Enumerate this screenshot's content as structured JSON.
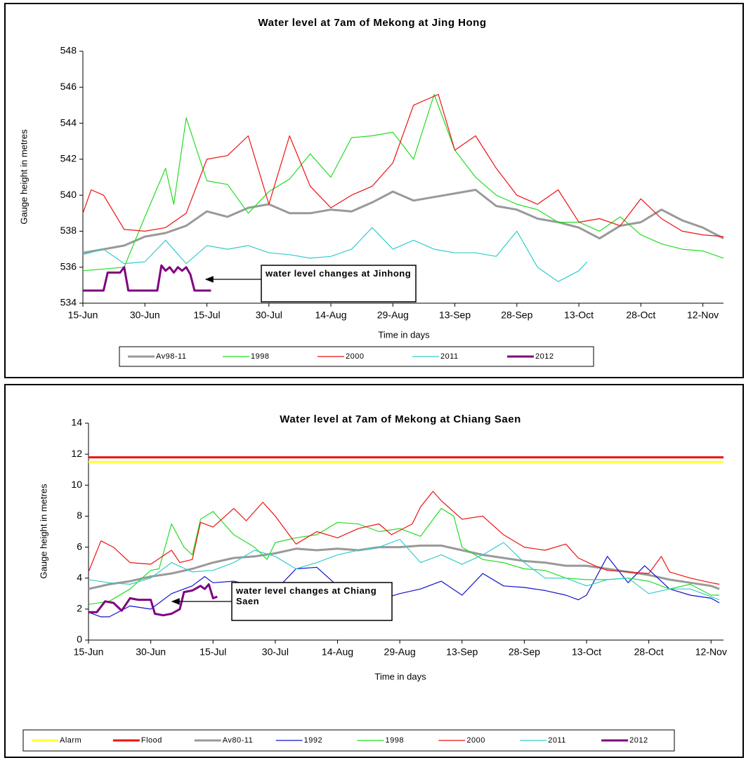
{
  "chart_data": [
    {
      "type": "line",
      "title": "Water level at 7am of Mekong at Jing Hong",
      "x_label": "Time in days",
      "y_label": "Gauge height in metres",
      "annotation": "water level changes at Jinhong",
      "xlim": [
        0,
        155
      ],
      "xticks": [
        {
          "value": 0,
          "label": "15-Jun"
        },
        {
          "value": 15,
          "label": "30-Jun"
        },
        {
          "value": 30,
          "label": "15-Jul"
        },
        {
          "value": 45,
          "label": "30-Jul"
        },
        {
          "value": 60,
          "label": "14-Aug"
        },
        {
          "value": 75,
          "label": "29-Aug"
        },
        {
          "value": 90,
          "label": "13-Sep"
        },
        {
          "value": 105,
          "label": "28-Sep"
        },
        {
          "value": 120,
          "label": "13-Oct"
        },
        {
          "value": 135,
          "label": "28-Oct"
        },
        {
          "value": 150,
          "label": "12-Nov"
        }
      ],
      "ylim": [
        534,
        548
      ],
      "yticks": [
        534,
        536,
        538,
        540,
        542,
        544,
        546,
        548
      ],
      "series": [
        {
          "name": "Av98-11",
          "color": "#999999",
          "line_width": 3,
          "x": [
            0,
            5,
            10,
            15,
            20,
            25,
            30,
            35,
            40,
            45,
            50,
            55,
            60,
            65,
            70,
            75,
            80,
            85,
            90,
            95,
            100,
            105,
            110,
            115,
            120,
            125,
            130,
            135,
            140,
            145,
            150,
            155
          ],
          "values": [
            536.8,
            537.0,
            537.2,
            537.7,
            537.9,
            538.3,
            539.1,
            538.8,
            539.3,
            539.5,
            539.0,
            539.0,
            539.2,
            539.1,
            539.6,
            540.2,
            539.7,
            539.9,
            540.1,
            540.3,
            539.4,
            539.2,
            538.7,
            538.5,
            538.2,
            537.6,
            538.3,
            538.5,
            539.2,
            538.6,
            538.2,
            537.6
          ]
        },
        {
          "name": "1998",
          "color": "#22dd22",
          "line_width": 1.2,
          "x": [
            0,
            5,
            10,
            15,
            20,
            22,
            25,
            30,
            35,
            40,
            45,
            50,
            55,
            60,
            65,
            70,
            75,
            80,
            85,
            90,
            95,
            100,
            105,
            110,
            115,
            120,
            125,
            130,
            135,
            140,
            145,
            150,
            155
          ],
          "values": [
            535.8,
            535.9,
            536.0,
            538.8,
            541.5,
            539.5,
            544.3,
            540.8,
            540.6,
            539.0,
            540.2,
            540.9,
            542.3,
            541.0,
            543.2,
            543.3,
            543.5,
            542.0,
            545.6,
            542.5,
            541.0,
            540.0,
            539.5,
            539.2,
            538.5,
            538.5,
            538.0,
            538.8,
            537.8,
            537.3,
            537.0,
            536.9,
            536.5
          ]
        },
        {
          "name": "2000",
          "color": "#ee1111",
          "line_width": 1.2,
          "x": [
            0,
            2,
            5,
            10,
            15,
            20,
            25,
            30,
            35,
            40,
            45,
            50,
            55,
            60,
            65,
            70,
            75,
            80,
            86,
            90,
            95,
            100,
            105,
            110,
            115,
            120,
            125,
            130,
            135,
            140,
            145,
            150,
            155
          ],
          "values": [
            539.0,
            540.3,
            540.0,
            538.1,
            538.0,
            538.2,
            539.0,
            542.0,
            542.2,
            543.3,
            539.5,
            543.3,
            540.5,
            539.3,
            540.0,
            540.5,
            541.8,
            545.0,
            545.6,
            542.5,
            543.3,
            541.5,
            540.0,
            539.5,
            540.3,
            538.5,
            538.7,
            538.3,
            539.8,
            538.7,
            538.0,
            537.8,
            537.7
          ]
        },
        {
          "name": "2011",
          "color": "#33cccc",
          "line_width": 1.2,
          "x": [
            0,
            5,
            10,
            15,
            20,
            25,
            30,
            35,
            40,
            45,
            50,
            55,
            60,
            65,
            70,
            75,
            80,
            85,
            90,
            95,
            100,
            105,
            110,
            115,
            120,
            122
          ],
          "values": [
            536.7,
            537.0,
            536.2,
            536.3,
            537.5,
            536.2,
            537.2,
            537.0,
            537.2,
            536.8,
            536.7,
            536.5,
            536.6,
            537.0,
            538.2,
            537.0,
            537.5,
            537.0,
            536.8,
            536.8,
            536.6,
            538.0,
            536.0,
            535.2,
            535.8,
            536.3
          ]
        },
        {
          "name": "2012",
          "color": "#800080",
          "line_width": 3,
          "x": [
            0,
            5,
            6,
            9,
            10,
            11,
            18,
            19,
            20,
            21,
            22,
            23,
            24,
            25,
            26,
            27,
            31
          ],
          "values": [
            534.7,
            534.7,
            535.7,
            535.7,
            536.0,
            534.7,
            534.7,
            536.1,
            535.8,
            536.0,
            535.7,
            536.0,
            535.8,
            536.0,
            535.6,
            534.7,
            534.7
          ]
        }
      ]
    },
    {
      "type": "line",
      "title": "Water level at 7am of Mekong at Chiang Saen",
      "x_label": "Time in days",
      "y_label": "Gauge height in metres",
      "annotation": "water level changes at Chiang Saen",
      "xlim": [
        0,
        153
      ],
      "xticks": [
        {
          "value": 0,
          "label": "15-Jun"
        },
        {
          "value": 15,
          "label": "30-Jun"
        },
        {
          "value": 30,
          "label": "15-Jul"
        },
        {
          "value": 45,
          "label": "30-Jul"
        },
        {
          "value": 60,
          "label": "14-Aug"
        },
        {
          "value": 75,
          "label": "29-Aug"
        },
        {
          "value": 90,
          "label": "13-Sep"
        },
        {
          "value": 105,
          "label": "28-Sep"
        },
        {
          "value": 120,
          "label": "13-Oct"
        },
        {
          "value": 135,
          "label": "28-Oct"
        },
        {
          "value": 150,
          "label": "12-Nov"
        }
      ],
      "ylim": [
        0,
        14
      ],
      "yticks": [
        0,
        2,
        4,
        6,
        8,
        10,
        12,
        14
      ],
      "series": [
        {
          "name": "Alarm",
          "color": "#ffff33",
          "line_width": 3,
          "x": [
            0,
            153
          ],
          "values": [
            11.5,
            11.5
          ]
        },
        {
          "name": "Flood",
          "color": "#ee1111",
          "line_width": 3,
          "x": [
            0,
            153
          ],
          "values": [
            11.8,
            11.8
          ]
        },
        {
          "name": "Av80-11",
          "color": "#999999",
          "line_width": 3,
          "x": [
            0,
            5,
            10,
            15,
            20,
            25,
            30,
            35,
            40,
            45,
            50,
            55,
            60,
            65,
            70,
            75,
            80,
            85,
            90,
            95,
            100,
            105,
            110,
            115,
            120,
            125,
            130,
            135,
            140,
            145,
            150,
            152
          ],
          "values": [
            3.3,
            3.6,
            3.8,
            4.1,
            4.3,
            4.6,
            5.0,
            5.3,
            5.4,
            5.6,
            5.9,
            5.8,
            5.9,
            5.8,
            6.0,
            6.0,
            6.1,
            6.1,
            5.8,
            5.5,
            5.3,
            5.1,
            5.0,
            4.8,
            4.8,
            4.6,
            4.4,
            4.2,
            3.9,
            3.7,
            3.5,
            3.3
          ]
        },
        {
          "name": "1992",
          "color": "#1111cc",
          "line_width": 1.2,
          "x": [
            0,
            3,
            5,
            10,
            15,
            20,
            25,
            28,
            30,
            35,
            40,
            45,
            50,
            55,
            60,
            65,
            70,
            75,
            80,
            85,
            90,
            95,
            100,
            105,
            110,
            115,
            118,
            120,
            125,
            130,
            134,
            140,
            145,
            150,
            152
          ],
          "values": [
            1.8,
            1.5,
            1.5,
            2.2,
            2.0,
            3.0,
            3.5,
            4.1,
            3.7,
            3.8,
            3.5,
            3.2,
            4.6,
            4.7,
            3.5,
            2.8,
            2.6,
            3.0,
            3.3,
            3.8,
            2.9,
            4.3,
            3.5,
            3.4,
            3.2,
            2.9,
            2.6,
            2.9,
            5.4,
            3.7,
            4.8,
            3.3,
            2.9,
            2.7,
            2.4
          ]
        },
        {
          "name": "1998",
          "color": "#22dd22",
          "line_width": 1.2,
          "x": [
            0,
            5,
            10,
            15,
            17,
            20,
            23,
            25,
            27,
            30,
            35,
            40,
            43,
            45,
            50,
            55,
            60,
            65,
            70,
            75,
            80,
            85,
            88,
            90,
            95,
            100,
            105,
            110,
            115,
            120,
            125,
            130,
            135,
            140,
            145,
            150,
            152
          ],
          "values": [
            2.3,
            2.5,
            3.3,
            4.5,
            4.6,
            7.5,
            6.0,
            5.5,
            7.8,
            8.3,
            6.8,
            6.0,
            5.2,
            6.3,
            6.6,
            6.8,
            7.6,
            7.5,
            7.0,
            7.2,
            6.7,
            8.5,
            8.0,
            6.0,
            5.2,
            5.0,
            4.6,
            4.5,
            4.0,
            3.9,
            3.9,
            4.0,
            3.8,
            3.3,
            3.6,
            2.9,
            2.9
          ]
        },
        {
          "name": "2000",
          "color": "#ee1111",
          "line_width": 1.2,
          "x": [
            0,
            3,
            6,
            10,
            15,
            20,
            22,
            25,
            27,
            30,
            35,
            38,
            42,
            45,
            50,
            55,
            60,
            65,
            70,
            73,
            78,
            80,
            83,
            85,
            90,
            95,
            100,
            105,
            110,
            115,
            118,
            122,
            125,
            130,
            135,
            138,
            140,
            145,
            150,
            152
          ],
          "values": [
            4.4,
            6.4,
            6.0,
            5.0,
            4.9,
            5.8,
            5.0,
            5.2,
            7.6,
            7.3,
            8.5,
            7.7,
            8.9,
            8.0,
            6.2,
            7.0,
            6.6,
            7.2,
            7.5,
            6.8,
            7.5,
            8.6,
            9.6,
            9.0,
            7.8,
            8.0,
            6.8,
            6.0,
            5.8,
            6.2,
            5.3,
            4.8,
            4.5,
            4.4,
            4.3,
            5.4,
            4.4,
            4.0,
            3.7,
            3.6
          ]
        },
        {
          "name": "2011",
          "color": "#33cccc",
          "line_width": 1.2,
          "x": [
            0,
            5,
            10,
            15,
            20,
            25,
            30,
            35,
            40,
            45,
            50,
            55,
            60,
            65,
            70,
            75,
            80,
            85,
            90,
            95,
            100,
            105,
            110,
            115,
            120,
            125,
            130,
            135,
            140,
            145,
            150,
            152
          ],
          "values": [
            3.9,
            3.7,
            3.6,
            4.0,
            5.0,
            4.4,
            4.5,
            5.0,
            5.8,
            5.4,
            4.6,
            5.0,
            5.5,
            5.8,
            6.0,
            6.5,
            5.0,
            5.5,
            4.9,
            5.5,
            6.3,
            5.0,
            4.0,
            4.0,
            3.5,
            3.9,
            4.0,
            3.0,
            3.3,
            3.3,
            2.8,
            2.6
          ]
        },
        {
          "name": "2012",
          "color": "#800080",
          "line_width": 3,
          "x": [
            0,
            2,
            4,
            6,
            8,
            10,
            12,
            15,
            16,
            18,
            20,
            22,
            23,
            25,
            27,
            28,
            29,
            30,
            31
          ],
          "values": [
            1.8,
            1.8,
            2.5,
            2.4,
            1.9,
            2.7,
            2.6,
            2.6,
            1.7,
            1.6,
            1.7,
            2.0,
            3.1,
            3.2,
            3.5,
            3.3,
            3.6,
            2.7,
            2.8
          ]
        }
      ]
    }
  ]
}
